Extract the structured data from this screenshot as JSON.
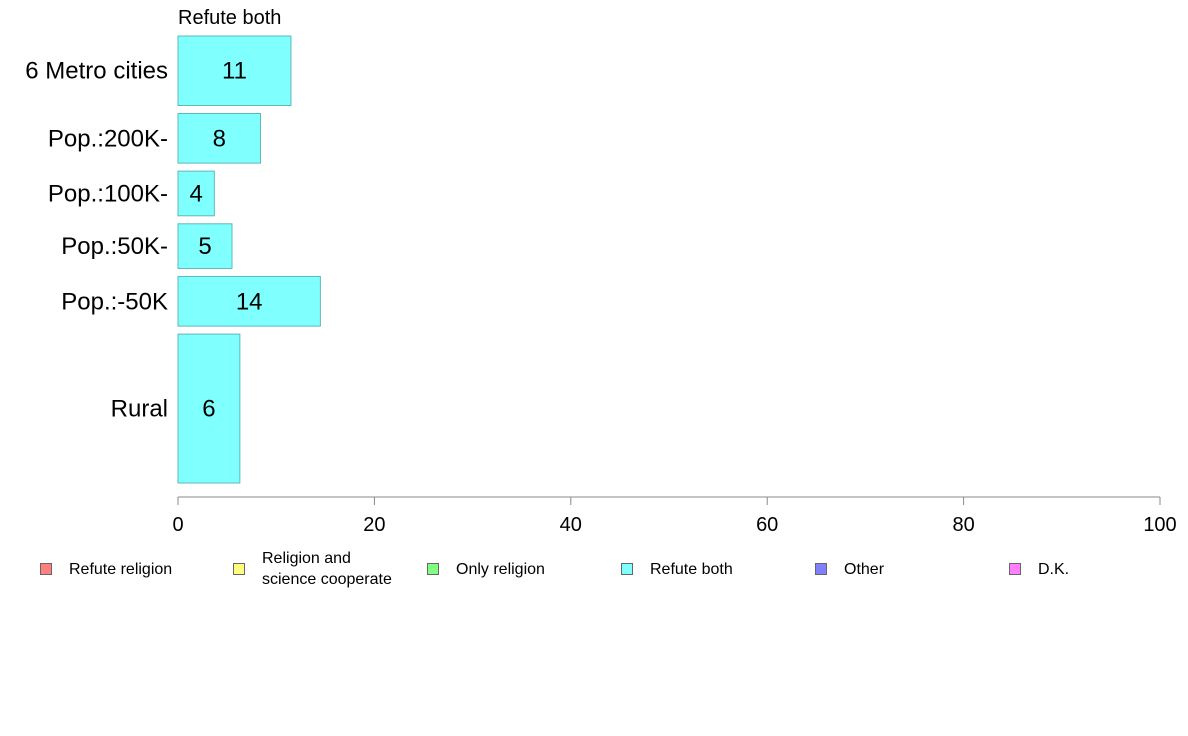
{
  "chart_data": {
    "type": "bar",
    "orientation": "horizontal",
    "title": "Refute both",
    "xlabel": "",
    "ylabel": "",
    "categories": [
      "6 Metro cities",
      "Pop.:200K-",
      "Pop.:100K-",
      "Pop.:50K-",
      "Pop.:-50K",
      "Rural"
    ],
    "series": [
      {
        "name": "Refute both",
        "values": [
          11.5,
          8.4,
          3.7,
          5.5,
          14.5,
          6.3
        ],
        "labels": [
          "11",
          "8",
          "4",
          "5",
          "14",
          "6"
        ]
      }
    ],
    "category_weights": [
      1.4,
      1.0,
      0.9,
      0.9,
      1.0,
      3.0
    ],
    "xlim": [
      0,
      100
    ],
    "xticks": [
      "0",
      "20",
      "40",
      "60",
      "80",
      "100"
    ],
    "grid": false,
    "bar_color": "#80ffff",
    "bar_edge_color": "#5fb8b8",
    "legend_position": "bottom",
    "legend": [
      {
        "label": "Refute religion",
        "color": "#ff8080"
      },
      {
        "label": "Religion and\nscience cooperate",
        "color": "#ffff80"
      },
      {
        "label": "Only religion",
        "color": "#80ff80"
      },
      {
        "label": "Refute both",
        "color": "#80ffff"
      },
      {
        "label": "Other",
        "color": "#8080ff"
      },
      {
        "label": "D.K.",
        "color": "#ff80ff"
      }
    ]
  }
}
